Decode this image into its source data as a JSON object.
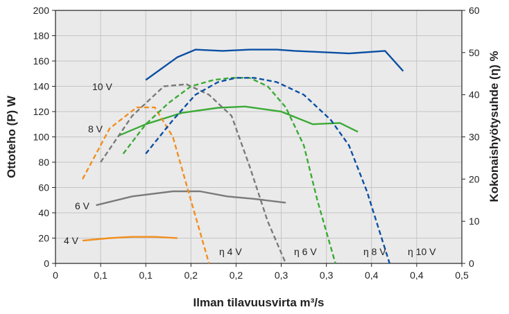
{
  "chart_data": {
    "type": "line",
    "xlabel": "Ilman tilavuusvirta m³/s",
    "ylabel": "Ottoteho (P) W",
    "y2label": "Kokonaishyötysuhde (η) %",
    "xlim": [
      0,
      0.45
    ],
    "ylim": [
      0,
      200
    ],
    "y2lim": [
      0,
      60
    ],
    "x_ticks": [
      0,
      0.05,
      0.1,
      0.15,
      0.2,
      0.25,
      0.3,
      0.35,
      0.4,
      0.45
    ],
    "x_tick_labels": [
      "0",
      "0,1",
      "0,1",
      "0,2",
      "0,2",
      "0,3",
      "0,3",
      "0,4",
      "0,4",
      "0,5"
    ],
    "y_ticks": [
      0,
      20,
      40,
      60,
      80,
      100,
      120,
      140,
      160,
      180,
      200
    ],
    "y2_ticks": [
      0,
      10,
      20,
      30,
      40,
      50,
      60
    ],
    "grid": true,
    "plot_background": "#eaeaea",
    "grid_color": "#c4c4c4",
    "series": [
      {
        "name": "4 V",
        "axis": "left",
        "style": "solid",
        "color": "#f28e1c",
        "x": [
          0.03,
          0.06,
          0.085,
          0.11,
          0.135
        ],
        "y": [
          18,
          20,
          21,
          21,
          20
        ]
      },
      {
        "name": "6 V",
        "axis": "left",
        "style": "solid",
        "color": "#7a7a7a",
        "x": [
          0.045,
          0.085,
          0.13,
          0.16,
          0.19,
          0.22,
          0.255
        ],
        "y": [
          46,
          53,
          57,
          57,
          53,
          51,
          48
        ]
      },
      {
        "name": "8 V",
        "axis": "left",
        "style": "solid",
        "color": "#3aaa35",
        "x": [
          0.07,
          0.1,
          0.14,
          0.18,
          0.21,
          0.25,
          0.285,
          0.315,
          0.335
        ],
        "y": [
          101,
          110,
          119,
          123,
          124,
          120,
          110,
          111,
          104
        ]
      },
      {
        "name": "10 V",
        "axis": "left",
        "style": "solid",
        "color": "#0a4fa3",
        "x": [
          0.1,
          0.1,
          0.135,
          0.155,
          0.185,
          0.215,
          0.245,
          0.265,
          0.295,
          0.325,
          0.365,
          0.385
        ],
        "y": [
          145,
          145,
          163,
          169,
          168,
          169,
          169,
          168,
          167,
          166,
          168,
          152
        ]
      },
      {
        "name": "η 4 V",
        "axis": "right",
        "style": "dashed",
        "color": "#f28e1c",
        "x": [
          0.03,
          0.06,
          0.09,
          0.11,
          0.13,
          0.15,
          0.17
        ],
        "y": [
          20,
          32,
          37,
          37,
          30,
          15,
          0
        ]
      },
      {
        "name": "η 6 V",
        "axis": "right",
        "style": "dashed",
        "color": "#7a7a7a",
        "x": [
          0.05,
          0.085,
          0.12,
          0.145,
          0.17,
          0.195,
          0.215,
          0.235,
          0.255
        ],
        "y": [
          24,
          35,
          42,
          42.5,
          40,
          35,
          23,
          10,
          0
        ]
      },
      {
        "name": "η 8 V",
        "axis": "right",
        "style": "dashed",
        "color": "#3aaa35",
        "x": [
          0.075,
          0.1,
          0.125,
          0.15,
          0.175,
          0.195,
          0.215,
          0.235,
          0.255,
          0.275,
          0.29,
          0.31
        ],
        "y": [
          26,
          33,
          38,
          42,
          43.5,
          44,
          44,
          42,
          37,
          28,
          15,
          0
        ]
      },
      {
        "name": "η 10 V",
        "axis": "right",
        "style": "dashed",
        "color": "#0a4fa3",
        "x": [
          0.1,
          0.13,
          0.155,
          0.18,
          0.2,
          0.22,
          0.245,
          0.275,
          0.305,
          0.325,
          0.345,
          0.37
        ],
        "y": [
          26,
          34,
          40,
          43,
          44,
          44,
          43,
          40,
          34,
          28,
          17,
          0
        ]
      }
    ],
    "curve_labels": [
      {
        "text": "4 V",
        "color": "#222222"
      },
      {
        "text": "6 V",
        "color": "#222222"
      },
      {
        "text": "8 V",
        "color": "#222222"
      },
      {
        "text": "10 V",
        "color": "#222222"
      },
      {
        "text": "η 4 V",
        "color": "#222222"
      },
      {
        "text": "η 6 V",
        "color": "#222222"
      },
      {
        "text": "η 8 V",
        "color": "#222222"
      },
      {
        "text": "η 10 V",
        "color": "#222222"
      }
    ]
  }
}
